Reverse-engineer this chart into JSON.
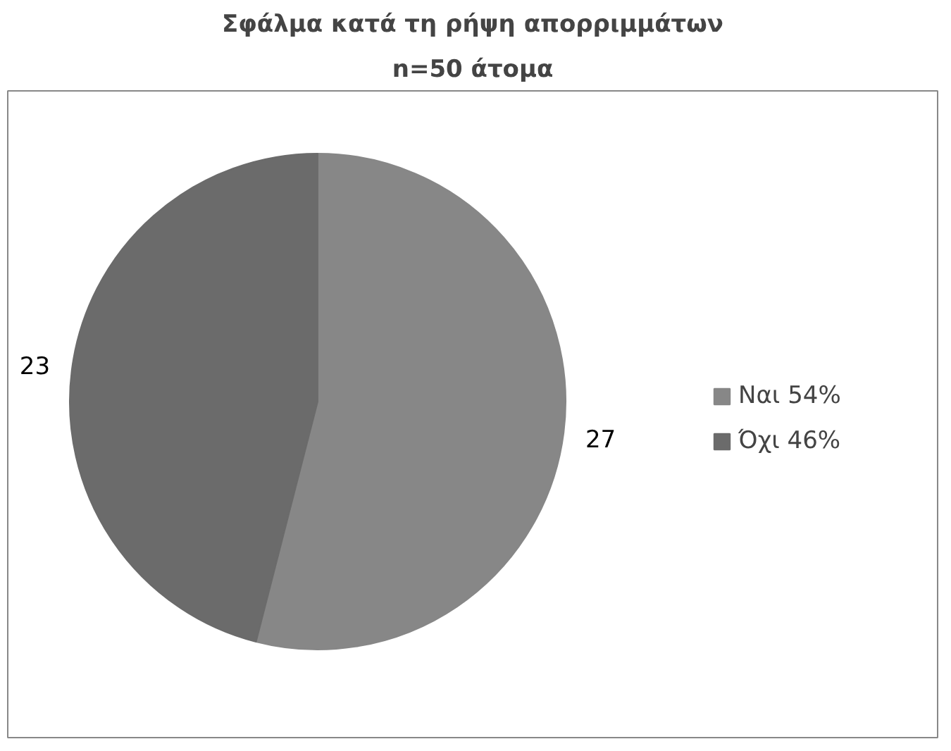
{
  "chart_data": {
    "type": "pie",
    "title": "Σφάλμα κατά τη ρήψη απορριμμάτων",
    "subtitle": "n=50 άτομα",
    "categories": [
      "Ναι 54%",
      "Όχι 46%"
    ],
    "values": [
      27,
      23
    ],
    "colors": [
      "#878787",
      "#6b6b6b"
    ],
    "data_labels": true,
    "legend": "right"
  }
}
